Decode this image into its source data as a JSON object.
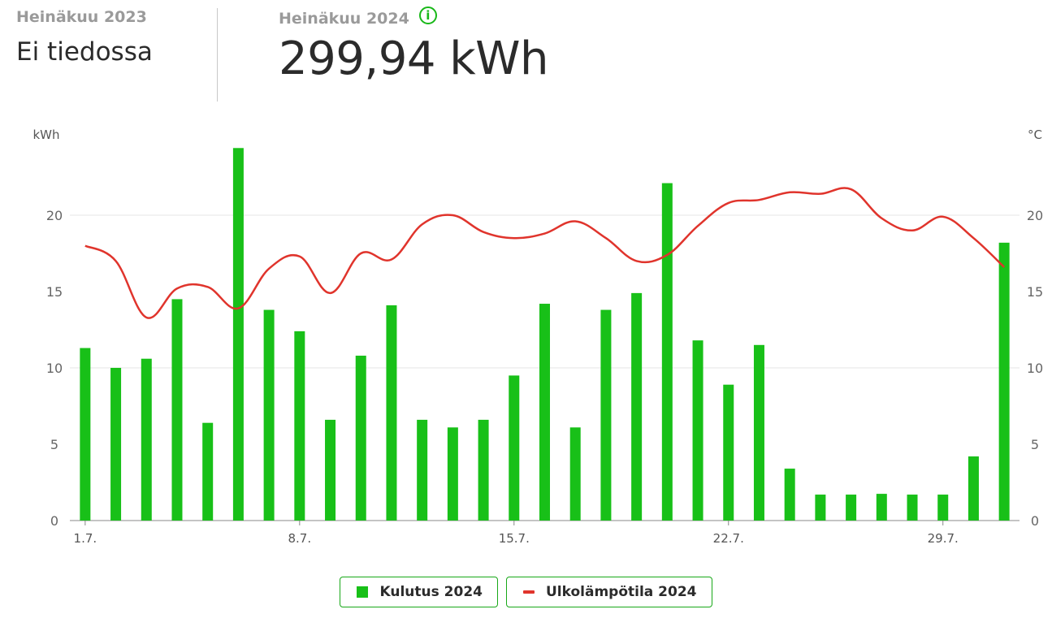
{
  "summary": {
    "previous": {
      "label": "Heinäkuu 2023",
      "value": "Ei tiedossa"
    },
    "current": {
      "label": "Heinäkuu 2024",
      "value": "299,94 kWh"
    },
    "info_glyph": "i"
  },
  "colors": {
    "bar": "#18c018",
    "line": "#e0342c",
    "grid": "#e4e4e4",
    "axis": "#888888",
    "legend_border": "#18a818"
  },
  "chart_data": {
    "type": "bar",
    "ylabel_left": "kWh",
    "ylabel_right": "°C",
    "ylim": [
      0,
      25
    ],
    "yticks": [
      0,
      5,
      10,
      15,
      20
    ],
    "grid_at": [
      10,
      20
    ],
    "categories": [
      1,
      2,
      3,
      4,
      5,
      6,
      7,
      8,
      9,
      10,
      11,
      12,
      13,
      14,
      15,
      16,
      17,
      18,
      19,
      20,
      21,
      22,
      23,
      24,
      25,
      26,
      27,
      28,
      29,
      30,
      31
    ],
    "xtick_labels": [
      {
        "day": 1,
        "label": "1.7."
      },
      {
        "day": 8,
        "label": "8.7."
      },
      {
        "day": 15,
        "label": "15.7."
      },
      {
        "day": 22,
        "label": "22.7."
      },
      {
        "day": 29,
        "label": "29.7."
      }
    ],
    "series": [
      {
        "name": "Kulutus 2024",
        "type": "bar",
        "axis": "left",
        "values": [
          11.3,
          10.0,
          10.6,
          14.5,
          6.4,
          24.4,
          13.8,
          12.4,
          6.6,
          10.8,
          14.1,
          6.6,
          6.1,
          6.6,
          9.5,
          14.2,
          6.1,
          13.8,
          14.9,
          22.1,
          11.8,
          8.9,
          11.5,
          3.4,
          1.7,
          1.7,
          1.75,
          1.7,
          1.7,
          4.2,
          18.2
        ]
      },
      {
        "name": "Ulkolämpötila 2024",
        "type": "line",
        "axis": "right",
        "values": [
          18.0,
          17.0,
          13.3,
          15.2,
          15.3,
          13.9,
          16.5,
          17.3,
          14.9,
          17.5,
          17.1,
          19.4,
          20.0,
          18.9,
          18.5,
          18.8,
          19.6,
          18.5,
          17.0,
          17.4,
          19.3,
          20.8,
          21.0,
          21.5,
          21.4,
          21.7,
          19.8,
          19.0,
          19.9,
          18.5,
          16.6
        ]
      }
    ]
  },
  "legend": [
    {
      "label": "Kulutus 2024"
    },
    {
      "label": "Ulkolämpötila 2024"
    }
  ]
}
